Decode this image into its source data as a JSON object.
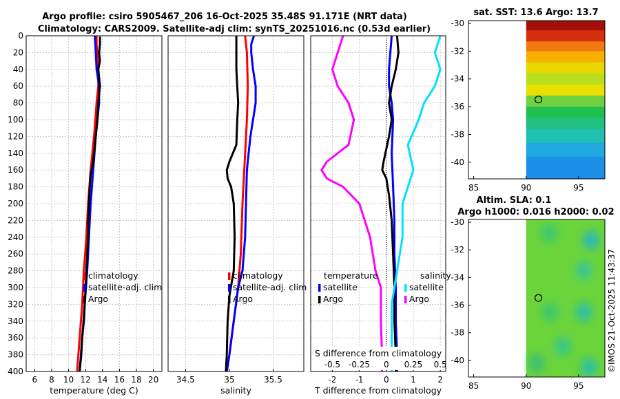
{
  "figure": {
    "title_line1": "Argo profile: csiro 5905467_206 16-Oct-2025 35.48S 91.171E (NRT data)",
    "title_line2": "Climatology: CARS2009. Satellite-adj clim: synTS_20251016.nc (0.53d earlier)",
    "credit": "©IMOS 21-Oct-2025 11:43:37"
  },
  "colors": {
    "argo": "#000000",
    "climatology": "#ff0000",
    "satellite": "#0000ff",
    "salinity_satellite": "#00e0ff",
    "salinity_argo": "#ff00ff"
  },
  "chart_data": [
    {
      "id": "temperature",
      "type": "line",
      "xlabel": "temperature (deg C)",
      "ylabel": "",
      "xlim": [
        5,
        21
      ],
      "ylim": [
        400,
        0
      ],
      "xticks": [
        6,
        8,
        10,
        12,
        14,
        16,
        18,
        20
      ],
      "yticks": [
        0,
        20,
        40,
        60,
        80,
        100,
        120,
        140,
        160,
        180,
        200,
        220,
        240,
        260,
        280,
        300,
        320,
        340,
        360,
        380,
        400
      ],
      "grid": true,
      "legend": [
        "climatology",
        "satellite-adj. clim",
        "Argo"
      ],
      "series": [
        {
          "name": "climatology",
          "color": "#ff0000",
          "points": [
            [
              13.3,
              0
            ],
            [
              13.3,
              10
            ],
            [
              13.5,
              40
            ],
            [
              13.5,
              60
            ],
            [
              13.3,
              80
            ],
            [
              13.0,
              120
            ],
            [
              12.6,
              160
            ],
            [
              12.3,
              200
            ],
            [
              12.1,
              240
            ],
            [
              11.8,
              280
            ],
            [
              11.6,
              320
            ],
            [
              11.3,
              360
            ],
            [
              11.0,
              400
            ]
          ]
        },
        {
          "name": "satellite-adj. clim",
          "color": "#0000ff",
          "points": [
            [
              13.1,
              0
            ],
            [
              13.2,
              20
            ],
            [
              13.3,
              40
            ],
            [
              13.6,
              60
            ],
            [
              13.6,
              80
            ],
            [
              13.2,
              120
            ],
            [
              12.9,
              160
            ],
            [
              12.6,
              200
            ],
            [
              12.4,
              240
            ],
            [
              12.2,
              280
            ],
            [
              11.9,
              320
            ],
            [
              11.6,
              360
            ],
            [
              11.3,
              400
            ]
          ]
        },
        {
          "name": "Argo",
          "color": "#000000",
          "points": [
            [
              13.7,
              1
            ],
            [
              13.7,
              10
            ],
            [
              13.6,
              20
            ],
            [
              13.7,
              30
            ],
            [
              13.5,
              40
            ],
            [
              13.6,
              50
            ],
            [
              13.7,
              60
            ],
            [
              13.6,
              70
            ],
            [
              13.5,
              80
            ],
            [
              13.4,
              100
            ],
            [
              13.2,
              120
            ],
            [
              12.9,
              150
            ],
            [
              12.6,
              165
            ],
            [
              12.5,
              180
            ],
            [
              12.4,
              200
            ],
            [
              12.3,
              220
            ],
            [
              12.3,
              240
            ],
            [
              12.2,
              260
            ],
            [
              12.1,
              280
            ],
            [
              12.0,
              300
            ],
            [
              11.9,
              320
            ],
            [
              11.8,
              340
            ],
            [
              11.6,
              360
            ],
            [
              11.5,
              380
            ],
            [
              11.3,
              400
            ]
          ]
        }
      ]
    },
    {
      "id": "salinity",
      "type": "line",
      "xlabel": "salinity",
      "xlim": [
        34.3,
        35.85
      ],
      "ylim": [
        400,
        0
      ],
      "xticks": [
        34.5,
        35,
        35.5
      ],
      "xticklabels": [
        "34.5",
        "35",
        "35.5"
      ],
      "grid": true,
      "legend": [
        "climatology",
        "satellite-adj. clim",
        "Argo"
      ],
      "series": [
        {
          "name": "climatology",
          "color": "#ff0000",
          "points": [
            [
              35.18,
              0
            ],
            [
              35.2,
              20
            ],
            [
              35.21,
              60
            ],
            [
              35.2,
              100
            ],
            [
              35.17,
              160
            ],
            [
              35.15,
              200
            ],
            [
              35.13,
              260
            ],
            [
              35.1,
              300
            ],
            [
              35.05,
              340
            ],
            [
              35.0,
              380
            ],
            [
              34.97,
              400
            ]
          ]
        },
        {
          "name": "satellite-adj. clim",
          "color": "#0000ff",
          "points": [
            [
              35.28,
              0
            ],
            [
              35.25,
              10
            ],
            [
              35.25,
              20
            ],
            [
              35.27,
              40
            ],
            [
              35.3,
              60
            ],
            [
              35.3,
              80
            ],
            [
              35.27,
              100
            ],
            [
              35.24,
              120
            ],
            [
              35.22,
              140
            ],
            [
              35.2,
              160
            ],
            [
              35.19,
              200
            ],
            [
              35.18,
              240
            ],
            [
              35.15,
              280
            ],
            [
              35.1,
              300
            ],
            [
              35.05,
              340
            ],
            [
              35.0,
              380
            ],
            [
              34.97,
              400
            ]
          ]
        },
        {
          "name": "Argo",
          "color": "#000000",
          "points": [
            [
              35.08,
              0
            ],
            [
              35.08,
              20
            ],
            [
              35.08,
              40
            ],
            [
              35.09,
              60
            ],
            [
              35.1,
              80
            ],
            [
              35.09,
              100
            ],
            [
              35.08,
              130
            ],
            [
              35.0,
              150
            ],
            [
              34.97,
              160
            ],
            [
              34.98,
              170
            ],
            [
              35.02,
              180
            ],
            [
              35.05,
              200
            ],
            [
              35.06,
              240
            ],
            [
              35.05,
              280
            ],
            [
              35.0,
              310
            ],
            [
              34.98,
              340
            ],
            [
              34.97,
              380
            ],
            [
              34.96,
              400
            ]
          ]
        }
      ]
    },
    {
      "id": "difference",
      "type": "line",
      "xlabel": "T difference from climatology",
      "xlabel2": "S difference from climatology",
      "xlim": [
        -2.8,
        2.2
      ],
      "ylim": [
        400,
        0
      ],
      "xticks": [
        -2,
        -1,
        0,
        1,
        2
      ],
      "xticklabels": [
        "-2",
        "-1",
        "0",
        "1",
        "2"
      ],
      "sticks": [
        -0.5,
        -0.25,
        0,
        0.25,
        0.5
      ],
      "sticklabels": [
        "-0.5",
        "-0.25",
        "0",
        "0.25",
        "0.5"
      ],
      "s_scale": 4,
      "grid": true,
      "legend_temperature": {
        "title": "temperature",
        "items": [
          "satellite",
          "Argo"
        ]
      },
      "legend_salinity": {
        "title": "salinity",
        "items": [
          "satellite",
          "Argo"
        ]
      },
      "series": [
        {
          "name": "temperature satellite",
          "color": "#0000ff",
          "points": [
            [
              0.2,
              0
            ],
            [
              0.15,
              20
            ],
            [
              0.1,
              40
            ],
            [
              0.1,
              60
            ],
            [
              0.2,
              80
            ],
            [
              0.25,
              100
            ],
            [
              0.2,
              140
            ],
            [
              0.25,
              180
            ],
            [
              0.3,
              220
            ],
            [
              0.3,
              260
            ],
            [
              0.35,
              300
            ],
            [
              0.35,
              340
            ],
            [
              0.4,
              380
            ],
            [
              0.4,
              400
            ]
          ]
        },
        {
          "name": "temperature Argo",
          "color": "#000000",
          "points": [
            [
              0.4,
              0
            ],
            [
              0.45,
              20
            ],
            [
              0.35,
              40
            ],
            [
              0.2,
              60
            ],
            [
              0.1,
              80
            ],
            [
              0.2,
              100
            ],
            [
              0.1,
              120
            ],
            [
              -0.1,
              150
            ],
            [
              -0.15,
              160
            ],
            [
              0.0,
              170
            ],
            [
              0.1,
              190
            ],
            [
              0.2,
              220
            ],
            [
              0.25,
              260
            ],
            [
              0.3,
              300
            ],
            [
              0.3,
              340
            ],
            [
              0.35,
              380
            ],
            [
              0.35,
              400
            ]
          ]
        },
        {
          "name": "salinity satellite",
          "color": "#00e0ff",
          "points": [
            [
              0.5,
              0
            ],
            [
              0.45,
              20
            ],
            [
              0.5,
              40
            ],
            [
              0.45,
              60
            ],
            [
              0.35,
              80
            ],
            [
              0.3,
              100
            ],
            [
              0.2,
              130
            ],
            [
              0.25,
              160
            ],
            [
              0.15,
              200
            ],
            [
              0.15,
              240
            ],
            [
              0.1,
              280
            ],
            [
              0.05,
              320
            ],
            [
              0.05,
              360
            ],
            [
              0.05,
              400
            ]
          ]
        },
        {
          "name": "salinity Argo",
          "color": "#ff00ff",
          "points": [
            [
              -0.4,
              0
            ],
            [
              -0.45,
              20
            ],
            [
              -0.5,
              40
            ],
            [
              -0.45,
              60
            ],
            [
              -0.35,
              80
            ],
            [
              -0.3,
              100
            ],
            [
              -0.35,
              130
            ],
            [
              -0.55,
              150
            ],
            [
              -0.6,
              160
            ],
            [
              -0.55,
              170
            ],
            [
              -0.4,
              180
            ],
            [
              -0.25,
              200
            ],
            [
              -0.15,
              240
            ],
            [
              -0.1,
              280
            ],
            [
              -0.05,
              300
            ],
            [
              -0.05,
              340
            ],
            [
              -0.04,
              380
            ],
            [
              -0.04,
              400
            ]
          ]
        }
      ]
    },
    {
      "id": "sst_map",
      "type": "heatmap",
      "title": "sat. SST: 13.6 Argo: 13.7",
      "xlim": [
        84.5,
        97.5
      ],
      "ylim": [
        -41.2,
        -29.8
      ],
      "xticks": [
        85,
        90,
        95
      ],
      "yticks": [
        -30,
        -32,
        -34,
        -36,
        -38,
        -40
      ],
      "data_x_start": 90,
      "bands": [
        [
          -30.5,
          "#a50f0a"
        ],
        [
          -31.3,
          "#d43010"
        ],
        [
          -32.0,
          "#f07a10"
        ],
        [
          -32.8,
          "#f5b000"
        ],
        [
          -33.6,
          "#e8d800"
        ],
        [
          -34.4,
          "#b8e020"
        ],
        [
          -35.2,
          "#e8e000"
        ],
        [
          -36.0,
          "#70d040"
        ],
        [
          -36.8,
          "#20c050"
        ],
        [
          -37.6,
          "#20c080"
        ],
        [
          -38.6,
          "#20c0b0"
        ],
        [
          -39.6,
          "#20a8e0"
        ],
        [
          -41.2,
          "#1c8fe8"
        ]
      ],
      "marker": {
        "lon": 91.17,
        "lat": -35.48
      }
    },
    {
      "id": "sla_map",
      "type": "heatmap",
      "title": "Altim. SLA: 0.1",
      "subtitle": "Argo h1000: 0.016 h2000: 0.02",
      "xlim": [
        84.5,
        97.5
      ],
      "ylim": [
        -41.2,
        -29.8
      ],
      "xticks": [
        85,
        90,
        95
      ],
      "yticks": [
        -30,
        -32,
        -34,
        -36,
        -38,
        -40
      ],
      "data_x_start": 90,
      "base_color": "#6ad43a",
      "blobs": [
        [
          92.2,
          -30.8,
          "#40c870"
        ],
        [
          96.2,
          -31.3,
          "#30b8b0"
        ],
        [
          95.5,
          -33.5,
          "#3ac890"
        ],
        [
          92.3,
          -36.5,
          "#40c870"
        ],
        [
          95.5,
          -36.5,
          "#30c0a0"
        ],
        [
          93.5,
          -39.0,
          "#3ac888"
        ],
        [
          96.0,
          -40.5,
          "#30c0a0"
        ],
        [
          91.0,
          -40.2,
          "#40c070"
        ]
      ],
      "marker": {
        "lon": 91.17,
        "lat": -35.48
      }
    }
  ]
}
